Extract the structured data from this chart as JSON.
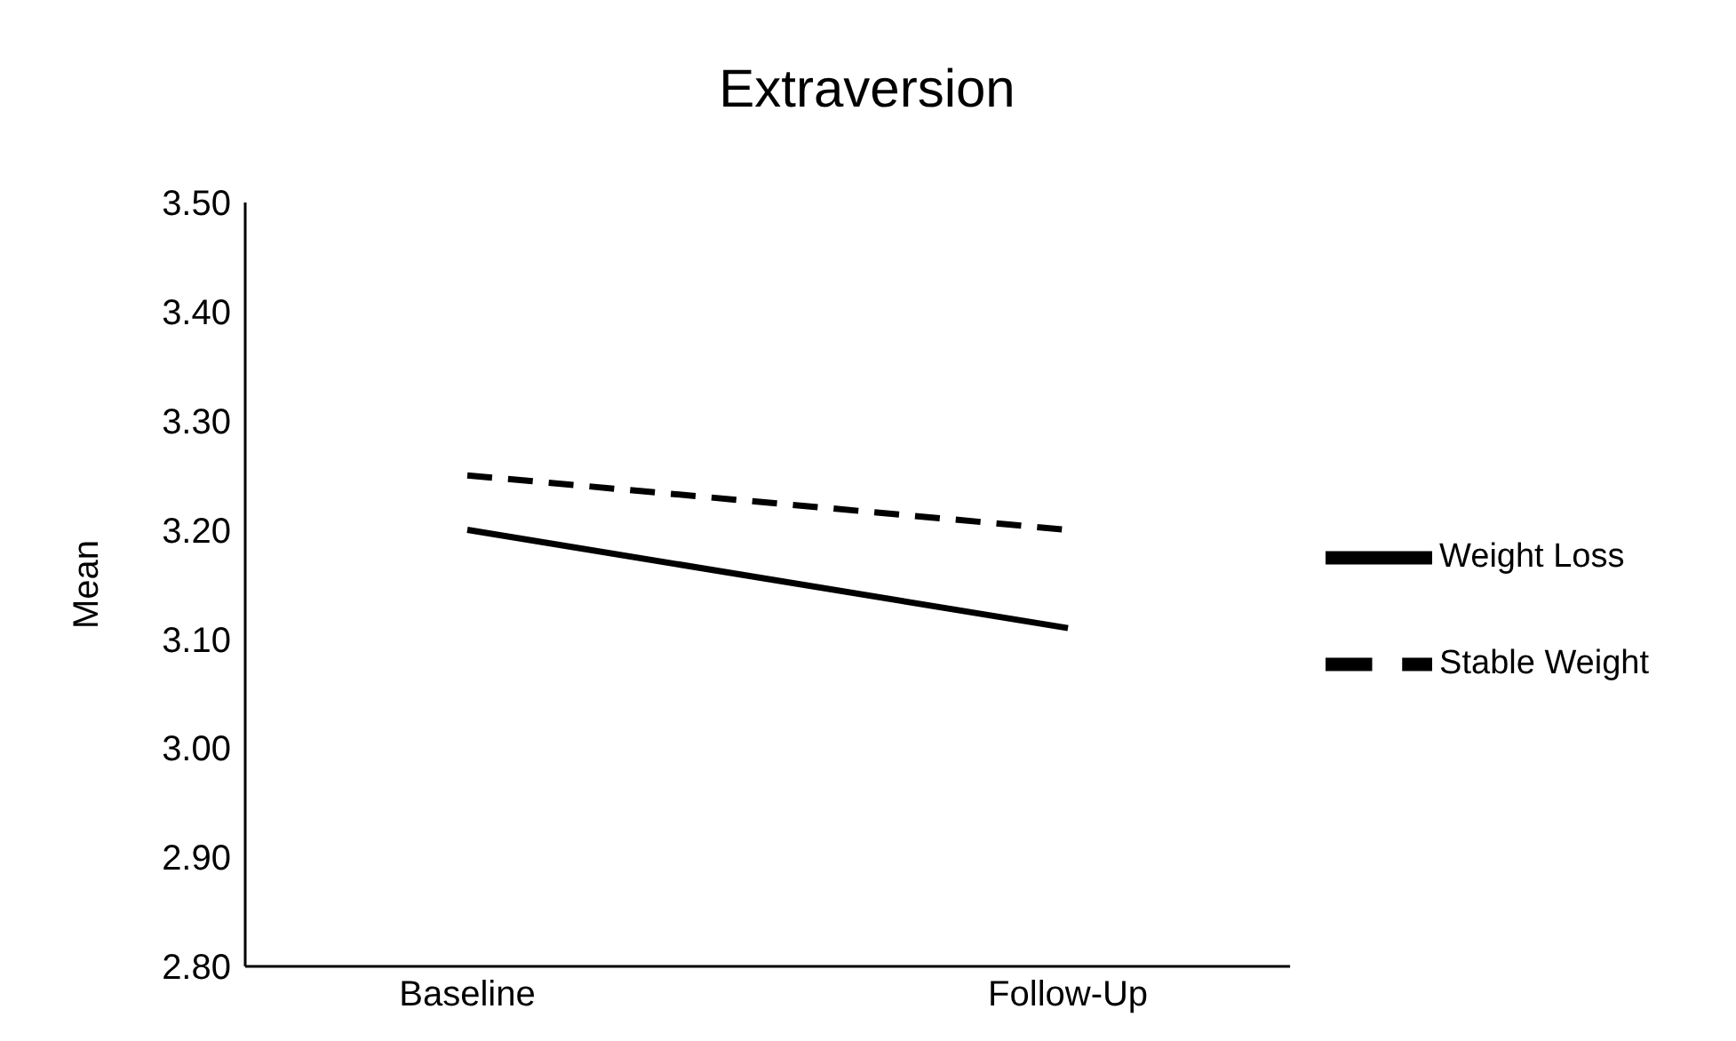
{
  "chart_data": {
    "type": "line",
    "title": "Extraversion",
    "ylabel": "Mean",
    "categories": [
      "Baseline",
      "Follow-Up"
    ],
    "series": [
      {
        "name": "Weight Loss",
        "color": "#000000",
        "values": [
          3.2,
          3.11
        ],
        "line_style": "solid"
      },
      {
        "name": "Stable Weight",
        "color": "#000000",
        "values": [
          3.25,
          3.2
        ],
        "line_style": "dashed"
      }
    ],
    "ylim": [
      2.8,
      3.5
    ],
    "yticks": [
      {
        "value": 2.8,
        "label": "2.80"
      },
      {
        "value": 2.9,
        "label": "2.90"
      },
      {
        "value": 3.0,
        "label": "3.00"
      },
      {
        "value": 3.1,
        "label": "3.10"
      },
      {
        "value": 3.2,
        "label": "3.20"
      },
      {
        "value": 3.3,
        "label": "3.30"
      },
      {
        "value": 3.4,
        "label": "3.40"
      },
      {
        "value": 3.5,
        "label": "3.50"
      }
    ],
    "grid": false,
    "legend": "right",
    "marker": "none"
  }
}
